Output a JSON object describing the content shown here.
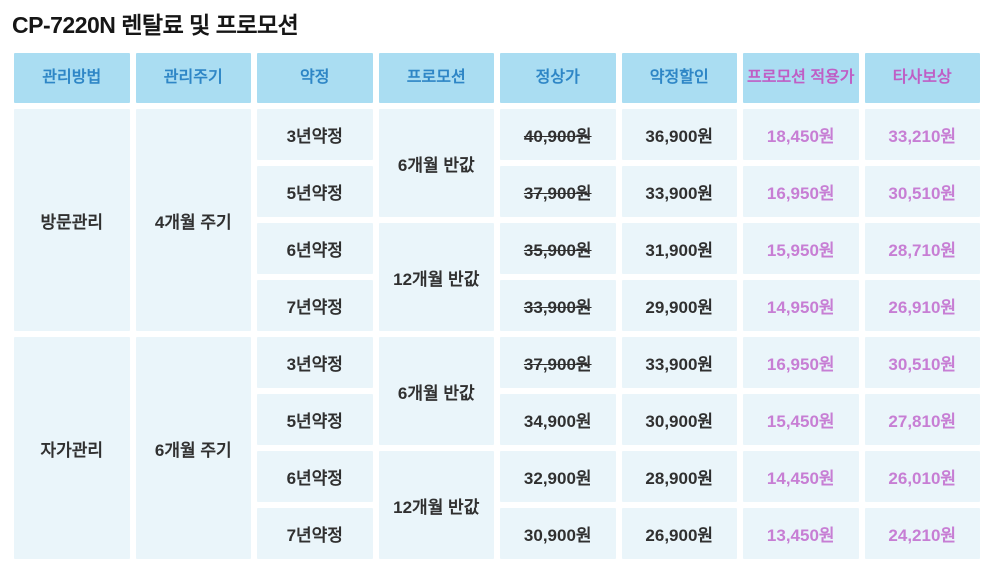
{
  "title": "CP-7220N 렌탈료 및 프로모션",
  "colors": {
    "header_bg": "#aaddf2",
    "cell_bg": "#eaf5fa",
    "header_blue_text": "#2e86c6",
    "header_pink_text": "#bf5ec5",
    "body_pink_text": "#c77ed4",
    "body_dark_text": "#303030",
    "title_text": "#161616"
  },
  "table": {
    "headers": [
      {
        "label": "관리방법",
        "accent": false
      },
      {
        "label": "관리주기",
        "accent": false
      },
      {
        "label": "약정",
        "accent": false
      },
      {
        "label": "프로모션",
        "accent": false
      },
      {
        "label": "정상가",
        "accent": false
      },
      {
        "label": "약정할인",
        "accent": false
      },
      {
        "label": "프로모션 적용가",
        "accent": true
      },
      {
        "label": "타사보상",
        "accent": true
      }
    ],
    "groups": [
      {
        "method": "방문관리",
        "cycle": "4개월 주기",
        "promos": [
          {
            "label": "6개월 반값",
            "rows": [
              {
                "term": "3년약정",
                "normal": "40,900원",
                "strike": true,
                "discount": "36,900원",
                "promo_price": "18,450원",
                "compensation": "33,210원"
              },
              {
                "term": "5년약정",
                "normal": "37,900원",
                "strike": true,
                "discount": "33,900원",
                "promo_price": "16,950원",
                "compensation": "30,510원"
              }
            ]
          },
          {
            "label": "12개월 반값",
            "rows": [
              {
                "term": "6년약정",
                "normal": "35,900원",
                "strike": true,
                "discount": "31,900원",
                "promo_price": "15,950원",
                "compensation": "28,710원"
              },
              {
                "term": "7년약정",
                "normal": "33,900원",
                "strike": true,
                "discount": "29,900원",
                "promo_price": "14,950원",
                "compensation": "26,910원"
              }
            ]
          }
        ]
      },
      {
        "method": "자가관리",
        "cycle": "6개월 주기",
        "promos": [
          {
            "label": "6개월 반값",
            "rows": [
              {
                "term": "3년약정",
                "normal": "37,900원",
                "strike": true,
                "discount": "33,900원",
                "promo_price": "16,950원",
                "compensation": "30,510원"
              },
              {
                "term": "5년약정",
                "normal": "34,900원",
                "strike": false,
                "discount": "30,900원",
                "promo_price": "15,450원",
                "compensation": "27,810원"
              }
            ]
          },
          {
            "label": "12개월 반값",
            "rows": [
              {
                "term": "6년약정",
                "normal": "32,900원",
                "strike": false,
                "discount": "28,900원",
                "promo_price": "14,450원",
                "compensation": "26,010원"
              },
              {
                "term": "7년약정",
                "normal": "30,900원",
                "strike": false,
                "discount": "26,900원",
                "promo_price": "13,450원",
                "compensation": "24,210원"
              }
            ]
          }
        ]
      }
    ]
  }
}
